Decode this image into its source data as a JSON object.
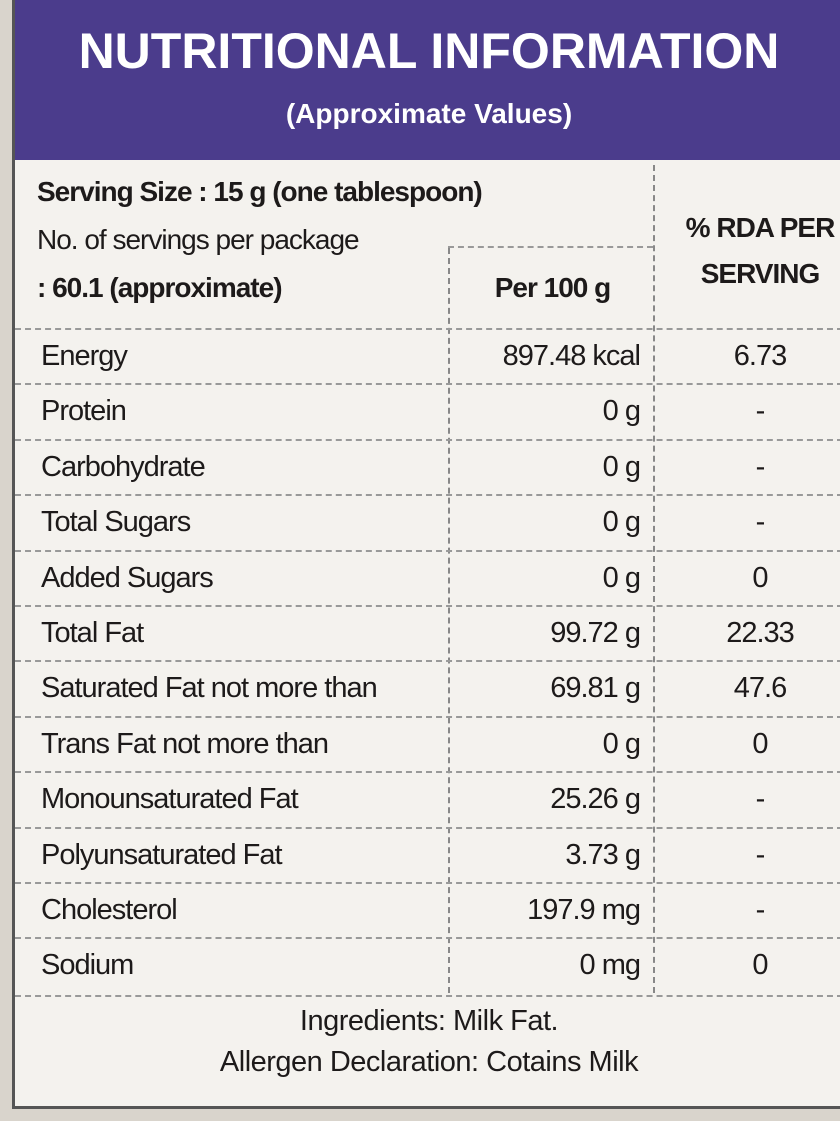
{
  "header": {
    "title": "NUTRITIONAL INFORMATION",
    "subtitle": "(Approximate Values)"
  },
  "serving": {
    "lines": [
      "Serving Size : 15 g (one tablespoon)",
      "No. of servings per package",
      ": 60.1 (approximate)"
    ]
  },
  "table": {
    "columns": [
      "Per 100 g",
      "% RDA PER SERVING"
    ],
    "rows": [
      [
        "Energy",
        "897.48 kcal",
        "6.73"
      ],
      [
        "Protein",
        "0 g",
        "-"
      ],
      [
        "Carbohydrate",
        "0 g",
        "-"
      ],
      [
        "Total Sugars",
        "0 g",
        "-"
      ],
      [
        "Added Sugars",
        "0 g",
        "0"
      ],
      [
        "Total Fat",
        "99.72 g",
        "22.33"
      ],
      [
        "Saturated Fat not more than",
        "69.81 g",
        "47.6"
      ],
      [
        "Trans Fat not more than",
        "0 g",
        "0"
      ],
      [
        "Monounsaturated Fat",
        "25.26 g",
        "-"
      ],
      [
        "Polyunsaturated Fat",
        "3.73 g",
        "-"
      ],
      [
        "Cholesterol",
        "197.9 mg",
        "-"
      ],
      [
        "Sodium",
        "0 mg",
        "0"
      ]
    ]
  },
  "footer": {
    "ingredients": "Ingredients: Milk Fat.",
    "allergen": "Allergen Declaration: Cotains Milk"
  }
}
